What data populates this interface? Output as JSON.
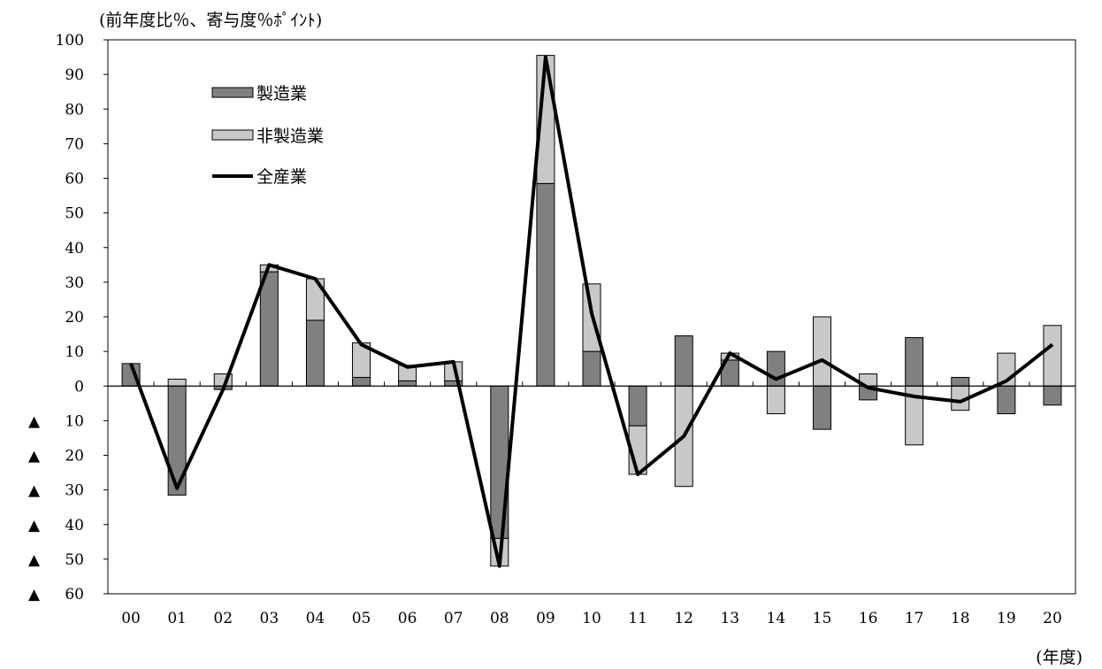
{
  "chart_data": {
    "type": "bar",
    "title": "",
    "ylabel": "(前年度比％、寄与度％ﾎﾟｲﾝﾄ)",
    "xlabel": "(年度)",
    "ylim": [
      -60,
      100
    ],
    "yticks": [
      100,
      90,
      80,
      70,
      60,
      50,
      40,
      30,
      20,
      10,
      0,
      -10,
      -20,
      -30,
      -40,
      -50,
      -60
    ],
    "ytick_labels": [
      "100",
      "90",
      "80",
      "70",
      "60",
      "50",
      "40",
      "30",
      "20",
      "10",
      "0",
      "▲ 10",
      "▲ 20",
      "▲ 30",
      "▲ 40",
      "▲ 50",
      "▲ 60"
    ],
    "categories": [
      "00",
      "01",
      "02",
      "03",
      "04",
      "05",
      "06",
      "07",
      "08",
      "09",
      "10",
      "11",
      "12",
      "13",
      "14",
      "15",
      "16",
      "17",
      "18",
      "19",
      "20"
    ],
    "series": [
      {
        "name": "製造業",
        "kind": "stacked-bar",
        "color": "#808080",
        "values": [
          6.5,
          -31.5,
          -1.0,
          33.0,
          19.0,
          2.5,
          1.5,
          1.5,
          -44.0,
          58.5,
          10.0,
          -11.5,
          14.5,
          7.5,
          10.0,
          -12.5,
          -4.0,
          14.0,
          2.5,
          -8.0,
          -5.5
        ]
      },
      {
        "name": "非製造業",
        "kind": "stacked-bar",
        "color": "#c8c8c8",
        "values": [
          0.0,
          2.0,
          3.5,
          2.0,
          12.0,
          10.0,
          4.5,
          5.5,
          -8.0,
          37.0,
          19.5,
          -14.0,
          -29.0,
          2.0,
          -8.0,
          20.0,
          3.5,
          -17.0,
          -7.0,
          9.5,
          17.5
        ]
      },
      {
        "name": "全産業",
        "kind": "line",
        "color": "#000000",
        "values": [
          6.5,
          -29.5,
          -1.0,
          35.0,
          31.0,
          12.0,
          5.5,
          7.0,
          -52.0,
          95.0,
          21.0,
          -25.5,
          -14.5,
          9.5,
          2.0,
          7.5,
          -0.5,
          -3.0,
          -4.5,
          1.5,
          12.0
        ]
      }
    ],
    "legend": {
      "placement": "top-left"
    },
    "grid": false
  }
}
